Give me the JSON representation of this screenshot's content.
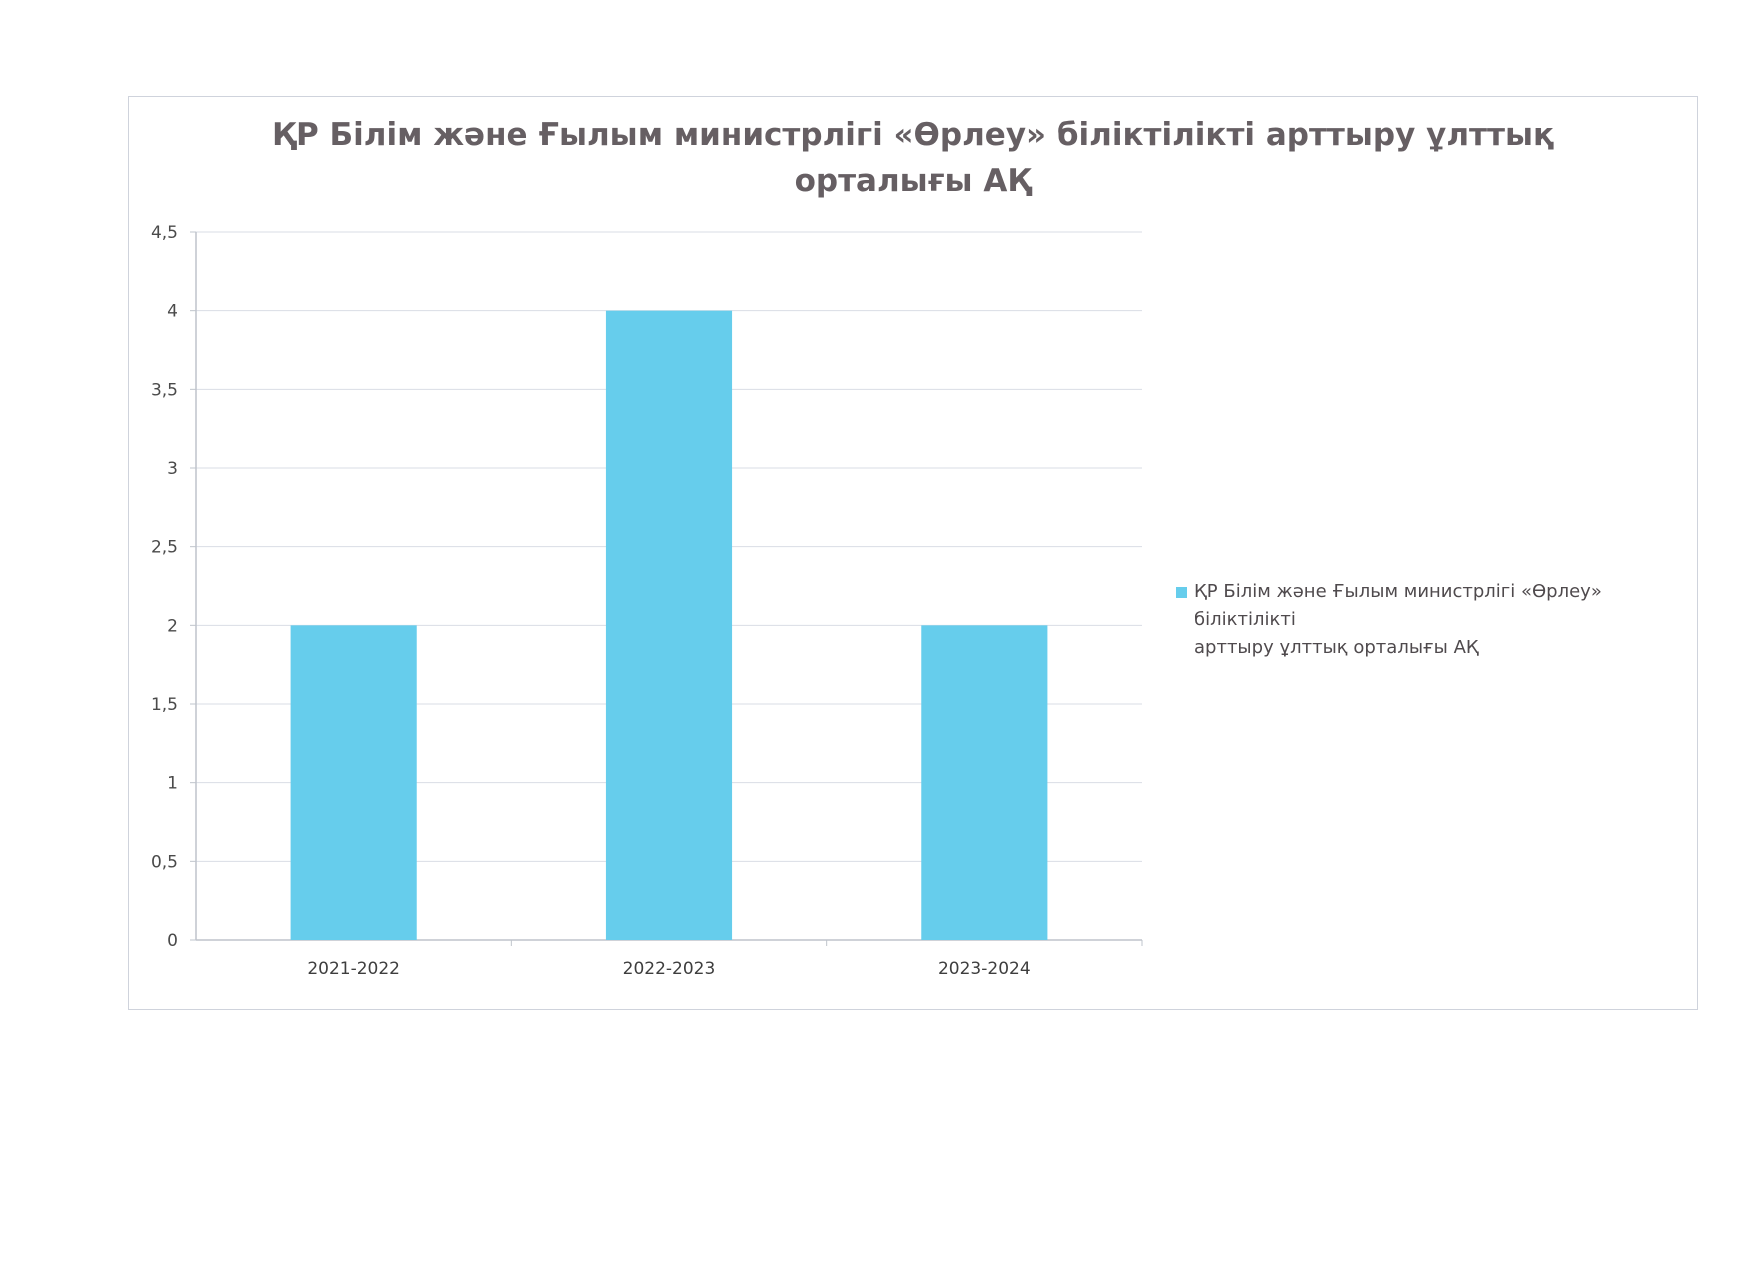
{
  "chart_data": {
    "type": "bar",
    "title": "ҚР Білім және Ғылым министрлігі «Өрлеу» біліктілікті арттыру ұлттық орталығы АҚ",
    "title_lines": [
      "ҚР Білім және Ғылым министрлігі «Өрлеу» біліктілікті арттыру ұлттық",
      "орталығы АҚ"
    ],
    "categories": [
      "2021-2022",
      "2022-2023",
      "2023-2024"
    ],
    "series": [
      {
        "name": "ҚР Білім және Ғылым министрлігі «Өрлеу» біліктілікті арттыру ұлттық орталығы АҚ",
        "values": [
          2,
          4,
          2
        ],
        "color": "#66cdec"
      }
    ],
    "xlabel": "",
    "ylabel": "",
    "ylim": [
      0,
      4.5
    ],
    "y_ticks": [
      "0",
      "0,5",
      "1",
      "1,5",
      "2",
      "2,5",
      "3",
      "3,5",
      "4",
      "4,5"
    ],
    "grid": true,
    "legend_position": "right",
    "legend_lines": [
      "ҚР Білім және Ғылым министрлігі «Өрлеу» біліктілікті",
      "арттыру ұлттық орталығы АҚ"
    ]
  },
  "colors": {
    "bar": "#66cdec",
    "grid": "#d9dde4",
    "axis": "#bfc4cc",
    "title": "#665f63"
  }
}
